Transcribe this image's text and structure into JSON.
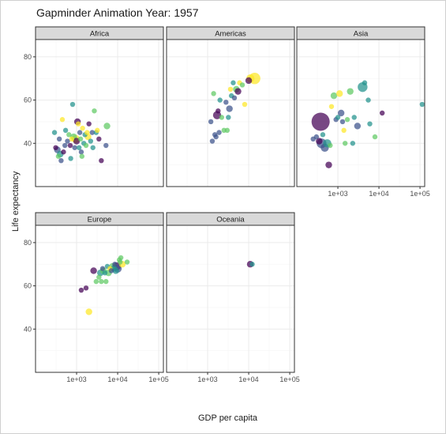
{
  "chart_data": {
    "type": "scatter",
    "title": "Gapminder Animation Year: 1957",
    "xlabel": "GDP per capita",
    "ylabel": "Life expectancy",
    "x_scale": "log10",
    "xlim": [
      100,
      130000
    ],
    "ylim": [
      20,
      88
    ],
    "x_ticks": [
      1000,
      10000,
      100000
    ],
    "x_tick_labels": [
      "1e+03",
      "1e+04",
      "1e+05"
    ],
    "y_ticks": [
      40,
      60,
      80
    ],
    "y_tick_labels": [
      "40",
      "60",
      "80"
    ],
    "grid": true,
    "facets": [
      "Africa",
      "Americas",
      "Asia",
      "Europe",
      "Oceania"
    ],
    "colors": {
      "palette": [
        "#440154",
        "#3b528b",
        "#21918c",
        "#5ec962",
        "#fde725"
      ],
      "strip_fill": "#d9d9d9",
      "panel_border": "#333333",
      "grid_major": "#ebebeb",
      "grid_minor": "#f5f5f5"
    },
    "panels": [
      {
        "name": "Africa",
        "points": [
          {
            "x": 290,
            "y": 45,
            "s": 2,
            "c": 2
          },
          {
            "x": 310,
            "y": 38,
            "s": 2,
            "c": 0
          },
          {
            "x": 340,
            "y": 37,
            "s": 3,
            "c": 1
          },
          {
            "x": 360,
            "y": 34,
            "s": 2,
            "c": 3
          },
          {
            "x": 380,
            "y": 42,
            "s": 2,
            "c": 1
          },
          {
            "x": 400,
            "y": 35,
            "s": 3,
            "c": 2
          },
          {
            "x": 420,
            "y": 32,
            "s": 2,
            "c": 1
          },
          {
            "x": 450,
            "y": 51,
            "s": 2,
            "c": 4
          },
          {
            "x": 480,
            "y": 36,
            "s": 2,
            "c": 0
          },
          {
            "x": 520,
            "y": 39,
            "s": 2,
            "c": 1
          },
          {
            "x": 540,
            "y": 46,
            "s": 2,
            "c": 2
          },
          {
            "x": 600,
            "y": 41,
            "s": 2,
            "c": 1
          },
          {
            "x": 650,
            "y": 44,
            "s": 2,
            "c": 3
          },
          {
            "x": 700,
            "y": 39,
            "s": 2,
            "c": 0
          },
          {
            "x": 720,
            "y": 33,
            "s": 2,
            "c": 2
          },
          {
            "x": 760,
            "y": 42,
            "s": 2,
            "c": 4
          },
          {
            "x": 800,
            "y": 58,
            "s": 2,
            "c": 2
          },
          {
            "x": 850,
            "y": 43,
            "s": 3,
            "c": 3
          },
          {
            "x": 900,
            "y": 38,
            "s": 2,
            "c": 1
          },
          {
            "x": 950,
            "y": 42,
            "s": 4,
            "c": 4
          },
          {
            "x": 1000,
            "y": 41,
            "s": 3,
            "c": 0
          },
          {
            "x": 1050,
            "y": 50,
            "s": 3,
            "c": 0
          },
          {
            "x": 1100,
            "y": 49,
            "s": 2,
            "c": 4
          },
          {
            "x": 1150,
            "y": 38,
            "s": 2,
            "c": 2
          },
          {
            "x": 1200,
            "y": 45,
            "s": 2,
            "c": 1
          },
          {
            "x": 1250,
            "y": 42,
            "s": 2,
            "c": 3
          },
          {
            "x": 1300,
            "y": 36,
            "s": 2,
            "c": 1
          },
          {
            "x": 1350,
            "y": 34,
            "s": 2,
            "c": 3
          },
          {
            "x": 1400,
            "y": 47,
            "s": 2,
            "c": 4
          },
          {
            "x": 1500,
            "y": 40,
            "s": 2,
            "c": 2
          },
          {
            "x": 1600,
            "y": 44,
            "s": 2,
            "c": 2
          },
          {
            "x": 1700,
            "y": 39,
            "s": 2,
            "c": 3
          },
          {
            "x": 1800,
            "y": 45,
            "s": 2,
            "c": 4
          },
          {
            "x": 1900,
            "y": 43,
            "s": 3,
            "c": 4
          },
          {
            "x": 2000,
            "y": 49,
            "s": 2,
            "c": 0
          },
          {
            "x": 2200,
            "y": 41,
            "s": 2,
            "c": 2
          },
          {
            "x": 2400,
            "y": 45,
            "s": 2,
            "c": 1
          },
          {
            "x": 2500,
            "y": 38,
            "s": 2,
            "c": 2
          },
          {
            "x": 2700,
            "y": 55,
            "s": 2,
            "c": 3
          },
          {
            "x": 3000,
            "y": 45,
            "s": 2,
            "c": 2
          },
          {
            "x": 3200,
            "y": 46,
            "s": 2,
            "c": 4
          },
          {
            "x": 3500,
            "y": 42,
            "s": 2,
            "c": 0
          },
          {
            "x": 4000,
            "y": 32,
            "s": 2,
            "c": 0
          },
          {
            "x": 5200,
            "y": 39,
            "s": 2,
            "c": 1
          },
          {
            "x": 5500,
            "y": 48,
            "s": 3,
            "c": 3
          }
        ]
      },
      {
        "name": "Americas",
        "points": [
          {
            "x": 1200,
            "y": 50,
            "s": 2,
            "c": 1
          },
          {
            "x": 1300,
            "y": 41,
            "s": 2,
            "c": 1
          },
          {
            "x": 1400,
            "y": 63,
            "s": 2,
            "c": 3
          },
          {
            "x": 1500,
            "y": 44,
            "s": 2,
            "c": 1
          },
          {
            "x": 1600,
            "y": 43,
            "s": 2,
            "c": 1
          },
          {
            "x": 1700,
            "y": 53,
            "s": 4,
            "c": 0
          },
          {
            "x": 1800,
            "y": 55,
            "s": 2,
            "c": 0
          },
          {
            "x": 1900,
            "y": 45,
            "s": 2,
            "c": 1
          },
          {
            "x": 2000,
            "y": 60,
            "s": 2,
            "c": 2
          },
          {
            "x": 2200,
            "y": 52,
            "s": 2,
            "c": 3
          },
          {
            "x": 2500,
            "y": 46,
            "s": 2,
            "c": 3
          },
          {
            "x": 2800,
            "y": 59,
            "s": 2,
            "c": 1
          },
          {
            "x": 3000,
            "y": 46,
            "s": 2,
            "c": 3
          },
          {
            "x": 3200,
            "y": 52,
            "s": 2,
            "c": 2
          },
          {
            "x": 3400,
            "y": 56,
            "s": 3,
            "c": 1
          },
          {
            "x": 3600,
            "y": 65,
            "s": 2,
            "c": 4
          },
          {
            "x": 3800,
            "y": 62,
            "s": 2,
            "c": 2
          },
          {
            "x": 4200,
            "y": 68,
            "s": 2,
            "c": 2
          },
          {
            "x": 4500,
            "y": 61,
            "s": 2,
            "c": 1
          },
          {
            "x": 5000,
            "y": 65,
            "s": 3,
            "c": 3
          },
          {
            "x": 5500,
            "y": 64,
            "s": 3,
            "c": 0
          },
          {
            "x": 6000,
            "y": 68,
            "s": 2,
            "c": 4
          },
          {
            "x": 7000,
            "y": 67,
            "s": 2,
            "c": 3
          },
          {
            "x": 8000,
            "y": 58,
            "s": 2,
            "c": 4
          },
          {
            "x": 10000,
            "y": 69,
            "s": 3,
            "c": 0
          },
          {
            "x": 11000,
            "y": 70,
            "s": 4,
            "c": 4
          },
          {
            "x": 14000,
            "y": 70,
            "s": 6,
            "c": 4
          }
        ]
      },
      {
        "name": "Asia",
        "points": [
          {
            "x": 250,
            "y": 42,
            "s": 2,
            "c": 1
          },
          {
            "x": 300,
            "y": 43,
            "s": 2,
            "c": 1
          },
          {
            "x": 350,
            "y": 41,
            "s": 3,
            "c": 0
          },
          {
            "x": 380,
            "y": 50,
            "s": 8,
            "c": 0
          },
          {
            "x": 400,
            "y": 40,
            "s": 5,
            "c": 1
          },
          {
            "x": 430,
            "y": 44,
            "s": 2,
            "c": 2
          },
          {
            "x": 480,
            "y": 38,
            "s": 4,
            "c": 1
          },
          {
            "x": 550,
            "y": 40,
            "s": 4,
            "c": 2
          },
          {
            "x": 600,
            "y": 30,
            "s": 3,
            "c": 0
          },
          {
            "x": 650,
            "y": 39,
            "s": 2,
            "c": 3
          },
          {
            "x": 700,
            "y": 57,
            "s": 2,
            "c": 4
          },
          {
            "x": 800,
            "y": 62,
            "s": 3,
            "c": 3
          },
          {
            "x": 900,
            "y": 51,
            "s": 2,
            "c": 1
          },
          {
            "x": 1000,
            "y": 52,
            "s": 2,
            "c": 2
          },
          {
            "x": 1100,
            "y": 63,
            "s": 3,
            "c": 4
          },
          {
            "x": 1200,
            "y": 54,
            "s": 3,
            "c": 1
          },
          {
            "x": 1300,
            "y": 50,
            "s": 2,
            "c": 1
          },
          {
            "x": 1400,
            "y": 46,
            "s": 2,
            "c": 4
          },
          {
            "x": 1500,
            "y": 40,
            "s": 2,
            "c": 3
          },
          {
            "x": 1700,
            "y": 51,
            "s": 2,
            "c": 3
          },
          {
            "x": 2000,
            "y": 64,
            "s": 3,
            "c": 3
          },
          {
            "x": 2300,
            "y": 40,
            "s": 2,
            "c": 2
          },
          {
            "x": 2500,
            "y": 52,
            "s": 2,
            "c": 2
          },
          {
            "x": 3000,
            "y": 48,
            "s": 3,
            "c": 1
          },
          {
            "x": 4000,
            "y": 66,
            "s": 5,
            "c": 2
          },
          {
            "x": 4500,
            "y": 68,
            "s": 2,
            "c": 2
          },
          {
            "x": 5500,
            "y": 60,
            "s": 2,
            "c": 2
          },
          {
            "x": 6000,
            "y": 49,
            "s": 2,
            "c": 2
          },
          {
            "x": 8000,
            "y": 43,
            "s": 2,
            "c": 3
          },
          {
            "x": 12000,
            "y": 54,
            "s": 2,
            "c": 0
          },
          {
            "x": 113000,
            "y": 58,
            "s": 2,
            "c": 2
          }
        ]
      },
      {
        "name": "Europe",
        "points": [
          {
            "x": 1300,
            "y": 58,
            "s": 2,
            "c": 0
          },
          {
            "x": 1700,
            "y": 59,
            "s": 2,
            "c": 0
          },
          {
            "x": 2000,
            "y": 48,
            "s": 3,
            "c": 4
          },
          {
            "x": 2600,
            "y": 67,
            "s": 3,
            "c": 0
          },
          {
            "x": 3000,
            "y": 62,
            "s": 2,
            "c": 3
          },
          {
            "x": 3500,
            "y": 64,
            "s": 2,
            "c": 3
          },
          {
            "x": 3800,
            "y": 66,
            "s": 3,
            "c": 2
          },
          {
            "x": 4000,
            "y": 62,
            "s": 2,
            "c": 3
          },
          {
            "x": 4300,
            "y": 68,
            "s": 2,
            "c": 1
          },
          {
            "x": 4500,
            "y": 67,
            "s": 3,
            "c": 3
          },
          {
            "x": 4900,
            "y": 66,
            "s": 2,
            "c": 2
          },
          {
            "x": 5200,
            "y": 62,
            "s": 2,
            "c": 3
          },
          {
            "x": 5600,
            "y": 69,
            "s": 2,
            "c": 2
          },
          {
            "x": 6000,
            "y": 66,
            "s": 3,
            "c": 3
          },
          {
            "x": 6500,
            "y": 68,
            "s": 2,
            "c": 4
          },
          {
            "x": 7000,
            "y": 67,
            "s": 2,
            "c": 1
          },
          {
            "x": 7500,
            "y": 69,
            "s": 3,
            "c": 3
          },
          {
            "x": 8000,
            "y": 68,
            "s": 3,
            "c": 2
          },
          {
            "x": 8500,
            "y": 70,
            "s": 2,
            "c": 1
          },
          {
            "x": 9000,
            "y": 67,
            "s": 3,
            "c": 2
          },
          {
            "x": 9500,
            "y": 69,
            "s": 4,
            "c": 0
          },
          {
            "x": 10000,
            "y": 68,
            "s": 4,
            "c": 1
          },
          {
            "x": 11000,
            "y": 72,
            "s": 2,
            "c": 3
          },
          {
            "x": 11500,
            "y": 71,
            "s": 2,
            "c": 3
          },
          {
            "x": 12000,
            "y": 73,
            "s": 2,
            "c": 3
          },
          {
            "x": 13000,
            "y": 70,
            "s": 3,
            "c": 4
          },
          {
            "x": 17000,
            "y": 71,
            "s": 2,
            "c": 3
          }
        ]
      },
      {
        "name": "Oceania",
        "points": [
          {
            "x": 10900,
            "y": 70,
            "s": 3,
            "c": 0
          },
          {
            "x": 12200,
            "y": 70,
            "s": 2,
            "c": 2
          }
        ]
      }
    ]
  }
}
